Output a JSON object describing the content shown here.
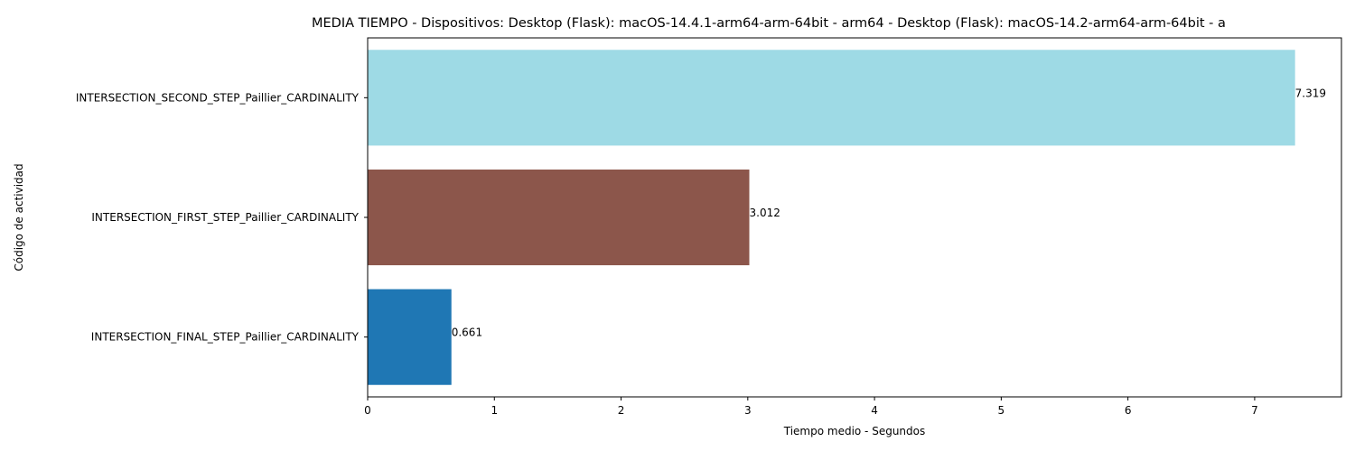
{
  "chart_data": {
    "type": "bar",
    "orientation": "horizontal",
    "title": "MEDIA TIEMPO - Dispositivos: Desktop (Flask): macOS-14.4.1-arm64-arm-64bit - arm64 - Desktop (Flask): macOS-14.2-arm64-arm-64bit - a",
    "xlabel": "Tiempo medio - Segundos",
    "ylabel": "Código de actividad",
    "categories": [
      "INTERSECTION_SECOND_STEP_Paillier_CARDINALITY",
      "INTERSECTION_FIRST_STEP_Paillier_CARDINALITY",
      "INTERSECTION_FINAL_STEP_Paillier_CARDINALITY"
    ],
    "values": [
      7.319,
      3.012,
      0.661
    ],
    "data_labels": [
      "7.319",
      "3.012",
      "0.661"
    ],
    "colors": [
      "#9edae5",
      "#8c564b",
      "#1f77b4"
    ],
    "xlim": [
      0,
      7.685
    ],
    "xticks": [
      0,
      1,
      2,
      3,
      4,
      5,
      6,
      7
    ],
    "grid": false,
    "legend": "none"
  }
}
